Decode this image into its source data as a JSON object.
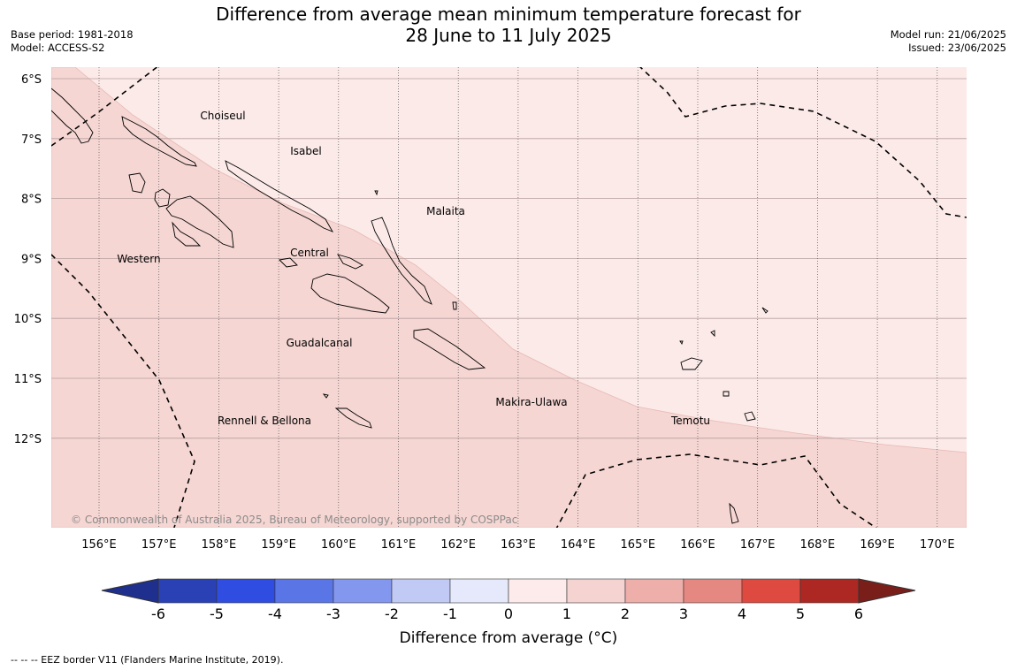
{
  "header": {
    "title_line1": "Difference from average mean minimum temperature forecast for",
    "title_line2": "28 June to 11 July 2025",
    "base_period": "Base period: 1981-2018",
    "model": "Model: ACCESS-S2",
    "model_run": "Model run: 21/06/2025",
    "issued": "Issued: 23/06/2025"
  },
  "map": {
    "lat_labels": [
      "6°S",
      "7°S",
      "8°S",
      "9°S",
      "10°S",
      "11°S",
      "12°S"
    ],
    "lon_labels": [
      "156°E",
      "157°E",
      "158°E",
      "159°E",
      "160°E",
      "161°E",
      "162°E",
      "163°E",
      "164°E",
      "165°E",
      "166°E",
      "167°E",
      "168°E",
      "169°E",
      "170°E"
    ],
    "regions": [
      "Choiseul",
      "Isabel",
      "Malaita",
      "Western",
      "Central",
      "Guadalcanal",
      "Makira-Ulawa",
      "Temotu",
      "Rennell & Bellona"
    ],
    "copyright": "© Commonwealth of Australia 2025, Bureau of Meteorology, supported by COSPPac",
    "fill_colors": {
      "band_0_1": "#fbeae8",
      "band_1_2": "#f5d6d3"
    }
  },
  "colorbar": {
    "ticks": [
      "-6",
      "-5",
      "-4",
      "-3",
      "-2",
      "-1",
      "0",
      "1",
      "2",
      "3",
      "4",
      "5",
      "6"
    ],
    "colors": [
      "#1e2f8e",
      "#2a41b5",
      "#2f4de0",
      "#5a76e6",
      "#8497ee",
      "#c1c9f5",
      "#e6e9fc",
      "#fcebea",
      "#f5d3d0",
      "#eeaeaa",
      "#e68882",
      "#df4a40",
      "#ad2822",
      "#7a1e1a"
    ],
    "label": "Difference from average (°C)"
  },
  "footnote": "--  --  -- EEZ border V11 (Flanders Marine Institute, 2019)."
}
